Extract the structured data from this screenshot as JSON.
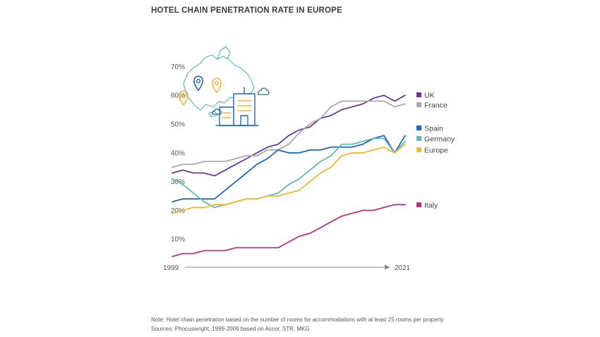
{
  "title": "HOTEL CHAIN PENETRATION RATE IN EUROPE",
  "notes": {
    "line1": "Note: Hotel chain penetration based on the number of rooms for accommodations with at least 25 rooms per property",
    "line2": "Sources: Phocuswright, 1999-2009 based on Accor, STR, MKG"
  },
  "chart_data": {
    "type": "line",
    "title": "HOTEL CHAIN PENETRATION RATE IN EUROPE",
    "xlabel": "",
    "ylabel": "",
    "x": [
      1999,
      2000,
      2001,
      2002,
      2003,
      2004,
      2005,
      2006,
      2007,
      2008,
      2009,
      2010,
      2011,
      2012,
      2013,
      2014,
      2015,
      2016,
      2017,
      2018,
      2019,
      2020,
      2021
    ],
    "x_tick_labels": [
      "1999",
      "2021"
    ],
    "ylim": [
      0,
      70
    ],
    "y_ticks": [
      "10%",
      "20%",
      "30%",
      "40%",
      "50%",
      "60%",
      "70%"
    ],
    "grid": false,
    "legend_position": "right",
    "series": [
      {
        "name": "UK",
        "color": "#6b3aa0",
        "values": [
          33,
          34,
          33,
          33,
          32,
          34,
          36,
          38,
          40,
          42,
          43,
          46,
          48,
          49,
          52,
          53,
          55,
          56,
          57,
          59,
          60,
          58,
          60
        ]
      },
      {
        "name": "France",
        "color": "#a9a9a9",
        "values": [
          35,
          36,
          36,
          37,
          37,
          37,
          38,
          39,
          39,
          41,
          41,
          43,
          47,
          50,
          52,
          56,
          58,
          58,
          58,
          58,
          58,
          56,
          57
        ]
      },
      {
        "name": "Spain",
        "color": "#2266b3",
        "values": [
          23,
          24,
          24,
          24,
          24,
          27,
          30,
          33,
          36,
          38,
          41,
          40,
          40,
          41,
          41,
          42,
          42,
          42,
          43,
          45,
          46,
          40,
          46
        ]
      },
      {
        "name": "Germany",
        "color": "#5fb8b8",
        "values": [
          31,
          29,
          26,
          23,
          21,
          22,
          23,
          24,
          24,
          25,
          26,
          29,
          31,
          34,
          37,
          39,
          43,
          43,
          44,
          45,
          45,
          40,
          44
        ]
      },
      {
        "name": "Europe",
        "color": "#f2b632",
        "values": [
          19,
          20,
          21,
          21,
          22,
          22,
          23,
          24,
          24,
          25,
          25,
          26,
          27,
          30,
          33,
          35,
          39,
          40,
          40,
          41,
          42,
          40,
          43
        ]
      },
      {
        "name": "Italy",
        "color": "#b8337f",
        "values": [
          4,
          5,
          5,
          6,
          6,
          6,
          7,
          7,
          7,
          7,
          7,
          9,
          11,
          12,
          14,
          16,
          18,
          19,
          20,
          20,
          21,
          22,
          22
        ]
      }
    ]
  }
}
